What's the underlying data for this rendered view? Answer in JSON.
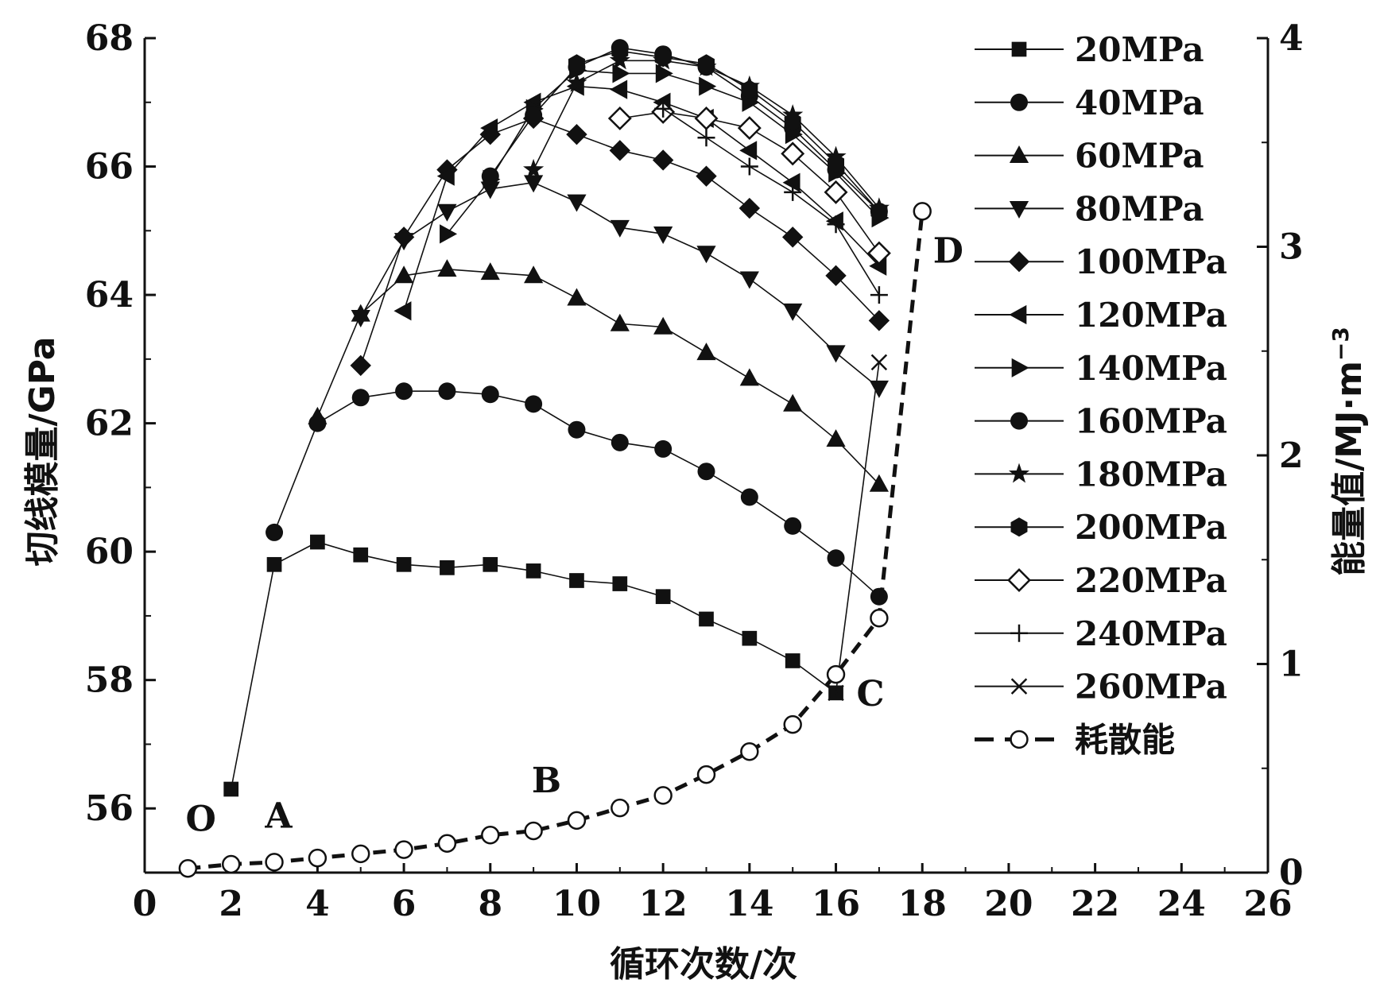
{
  "chart_data": {
    "type": "line",
    "xlabel": "循环次数/次",
    "ylabel": "切线模量/GPa",
    "y2label": "能量值/MJ·m",
    "y2label_sup": "−3",
    "xlim": [
      0,
      26
    ],
    "ylim": [
      55,
      68
    ],
    "y2lim": [
      0,
      4
    ],
    "x_ticks": [
      0,
      2,
      4,
      6,
      8,
      10,
      12,
      14,
      16,
      18,
      20,
      22,
      24,
      26
    ],
    "y_ticks": [
      56,
      58,
      60,
      62,
      64,
      66,
      68
    ],
    "y2_ticks": [
      0,
      1,
      2,
      3,
      4
    ],
    "grid": false,
    "legend_position": "top-right",
    "series": [
      {
        "name": "20MPa",
        "marker": "square",
        "points": [
          [
            2,
            56.3
          ],
          [
            3,
            59.8
          ],
          [
            4,
            60.15
          ],
          [
            5,
            59.95
          ],
          [
            6,
            59.8
          ],
          [
            7,
            59.75
          ],
          [
            8,
            59.8
          ],
          [
            9,
            59.7
          ],
          [
            10,
            59.55
          ],
          [
            11,
            59.5
          ],
          [
            12,
            59.3
          ],
          [
            13,
            58.95
          ],
          [
            14,
            58.65
          ],
          [
            15,
            58.3
          ],
          [
            16,
            57.8
          ]
        ]
      },
      {
        "name": "40MPa",
        "marker": "circle",
        "points": [
          [
            3,
            60.3
          ],
          [
            4,
            62.0
          ],
          [
            5,
            62.4
          ],
          [
            6,
            62.5
          ],
          [
            7,
            62.5
          ],
          [
            8,
            62.45
          ],
          [
            9,
            62.3
          ],
          [
            10,
            61.9
          ],
          [
            11,
            61.7
          ],
          [
            12,
            61.6
          ],
          [
            13,
            61.25
          ],
          [
            14,
            60.85
          ],
          [
            15,
            60.4
          ],
          [
            16,
            59.9
          ],
          [
            17,
            59.3
          ]
        ]
      },
      {
        "name": "60MPa",
        "marker": "triangle-up",
        "points": [
          [
            4,
            62.1
          ],
          [
            5,
            63.7
          ],
          [
            6,
            64.3
          ],
          [
            7,
            64.4
          ],
          [
            8,
            64.35
          ],
          [
            9,
            64.3
          ],
          [
            10,
            63.95
          ],
          [
            11,
            63.55
          ],
          [
            12,
            63.5
          ],
          [
            13,
            63.1
          ],
          [
            14,
            62.7
          ],
          [
            15,
            62.3
          ],
          [
            16,
            61.75
          ],
          [
            17,
            61.05
          ]
        ]
      },
      {
        "name": "80MPa",
        "marker": "triangle-down",
        "points": [
          [
            5,
            63.65
          ],
          [
            6,
            64.85
          ],
          [
            7,
            65.3
          ],
          [
            8,
            65.65
          ],
          [
            9,
            65.75
          ],
          [
            10,
            65.45
          ],
          [
            11,
            65.05
          ],
          [
            12,
            64.95
          ],
          [
            13,
            64.65
          ],
          [
            14,
            64.25
          ],
          [
            15,
            63.75
          ],
          [
            16,
            63.1
          ],
          [
            17,
            62.55
          ]
        ]
      },
      {
        "name": "100MPa",
        "marker": "diamond",
        "points": [
          [
            5,
            62.9
          ],
          [
            6,
            64.9
          ],
          [
            7,
            65.95
          ],
          [
            8,
            66.5
          ],
          [
            9,
            66.75
          ],
          [
            10,
            66.5
          ],
          [
            11,
            66.25
          ],
          [
            12,
            66.1
          ],
          [
            13,
            65.85
          ],
          [
            14,
            65.35
          ],
          [
            15,
            64.9
          ],
          [
            16,
            64.3
          ],
          [
            17,
            63.6
          ]
        ]
      },
      {
        "name": "120MPa",
        "marker": "triangle-left",
        "points": [
          [
            6,
            63.75
          ],
          [
            7,
            65.85
          ],
          [
            8,
            66.6
          ],
          [
            9,
            67.0
          ],
          [
            10,
            67.25
          ],
          [
            11,
            67.2
          ],
          [
            12,
            67.0
          ],
          [
            13,
            66.75
          ],
          [
            14,
            66.25
          ],
          [
            15,
            65.75
          ],
          [
            16,
            65.15
          ],
          [
            17,
            64.45
          ]
        ]
      },
      {
        "name": "140MPa",
        "marker": "triangle-right",
        "points": [
          [
            7,
            64.95
          ],
          [
            8,
            65.8
          ],
          [
            9,
            66.9
          ],
          [
            10,
            67.5
          ],
          [
            11,
            67.45
          ],
          [
            12,
            67.45
          ],
          [
            13,
            67.25
          ],
          [
            14,
            67.0
          ],
          [
            15,
            66.5
          ],
          [
            16,
            65.9
          ],
          [
            17,
            65.2
          ]
        ]
      },
      {
        "name": "160MPa",
        "marker": "circle",
        "points": [
          [
            8,
            65.85
          ],
          [
            9,
            66.8
          ],
          [
            10,
            67.55
          ],
          [
            11,
            67.85
          ],
          [
            12,
            67.75
          ],
          [
            13,
            67.55
          ],
          [
            14,
            67.1
          ],
          [
            15,
            66.6
          ],
          [
            16,
            65.95
          ],
          [
            17,
            65.3
          ]
        ]
      },
      {
        "name": "180MPa",
        "marker": "star",
        "points": [
          [
            9,
            65.95
          ],
          [
            10,
            67.3
          ],
          [
            11,
            67.65
          ],
          [
            12,
            67.65
          ],
          [
            13,
            67.55
          ],
          [
            14,
            67.25
          ],
          [
            15,
            66.8
          ],
          [
            16,
            66.15
          ],
          [
            17,
            65.35
          ]
        ]
      },
      {
        "name": "200MPa",
        "marker": "hexagon",
        "points": [
          [
            10,
            67.6
          ],
          [
            11,
            67.8
          ],
          [
            12,
            67.7
          ],
          [
            13,
            67.6
          ],
          [
            14,
            67.2
          ],
          [
            15,
            66.7
          ],
          [
            16,
            66.05
          ],
          [
            17,
            65.3
          ]
        ]
      },
      {
        "name": "220MPa",
        "marker": "open-diamond",
        "points": [
          [
            11,
            66.75
          ],
          [
            12,
            66.85
          ],
          [
            13,
            66.75
          ],
          [
            14,
            66.6
          ],
          [
            15,
            66.2
          ],
          [
            16,
            65.6
          ],
          [
            17,
            64.65
          ]
        ]
      },
      {
        "name": "240MPa",
        "marker": "plus",
        "points": [
          [
            12,
            66.9
          ],
          [
            13,
            66.45
          ],
          [
            14,
            66.0
          ],
          [
            15,
            65.6
          ],
          [
            16,
            65.1
          ],
          [
            17,
            64.0
          ]
        ]
      },
      {
        "name": "260MPa",
        "marker": "x",
        "points": [
          [
            16,
            57.8
          ],
          [
            17,
            62.95
          ]
        ]
      },
      {
        "name": "耗散能",
        "marker": "open-circle",
        "axis": "right",
        "dashed": true,
        "points": [
          [
            1,
            0.02
          ],
          [
            2,
            0.04
          ],
          [
            3,
            0.05
          ],
          [
            4,
            0.07
          ],
          [
            5,
            0.09
          ],
          [
            6,
            0.11
          ],
          [
            7,
            0.14
          ],
          [
            8,
            0.18
          ],
          [
            9,
            0.2
          ],
          [
            10,
            0.25
          ],
          [
            11,
            0.31
          ],
          [
            12,
            0.37
          ],
          [
            13,
            0.47
          ],
          [
            14,
            0.58
          ],
          [
            15,
            0.71
          ],
          [
            16,
            0.95
          ],
          [
            17,
            1.22
          ],
          [
            18,
            3.17
          ]
        ]
      }
    ],
    "annotations": [
      {
        "text": "O",
        "x": 1.3,
        "y": 55.65
      },
      {
        "text": "A",
        "x": 3.1,
        "y": 55.7
      },
      {
        "text": "B",
        "x": 9.3,
        "y": 56.25
      },
      {
        "text": "C",
        "x": 16.8,
        "y": 57.6
      },
      {
        "text": "D",
        "x": 18.6,
        "y": 64.5
      }
    ]
  }
}
